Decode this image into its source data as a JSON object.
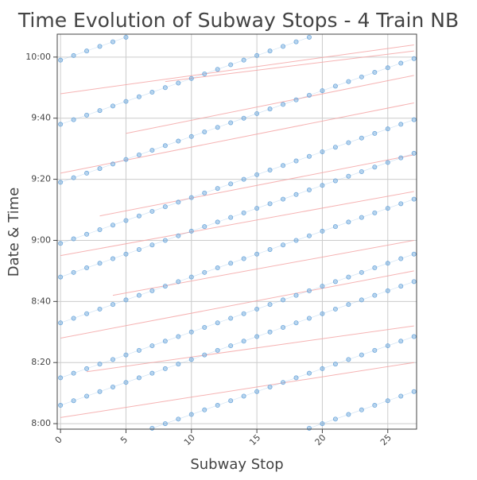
{
  "chart_data": {
    "type": "scatter",
    "title": "Time Evolution of Subway Stops - 4 Train NB",
    "x_label": "Subway Stop",
    "y_label": "Date & Time",
    "xlim": [
      -0.25,
      27.2
    ],
    "ylim": [
      478.2,
      607.5
    ],
    "xticks": [
      0,
      5,
      10,
      15,
      20,
      25
    ],
    "yticks": [
      {
        "value": 480,
        "label": "8:00"
      },
      {
        "value": 500,
        "label": "8:20"
      },
      {
        "value": 520,
        "label": "8:40"
      },
      {
        "value": 540,
        "label": "9:00"
      },
      {
        "value": 560,
        "label": "9:20"
      },
      {
        "value": 580,
        "label": "9:40"
      },
      {
        "value": 600,
        "label": "10:00"
      }
    ],
    "grid": true,
    "x": [
      0,
      1,
      2,
      3,
      4,
      5,
      6,
      7,
      8,
      9,
      10,
      11,
      12,
      13,
      14,
      15,
      16,
      17,
      18,
      19,
      20,
      21,
      22,
      23,
      24,
      25,
      26,
      27
    ],
    "series": [
      {
        "color": "#6fa8dc",
        "values": [
          null,
          null,
          null,
          null,
          null,
          null,
          null,
          null,
          null,
          null,
          null,
          null,
          null,
          null,
          null,
          null,
          null,
          null,
          null,
          478.5,
          480,
          481.5,
          483,
          484.5,
          486,
          487.5,
          489,
          490.5
        ]
      },
      {
        "color": "#6fa8dc",
        "values": [
          null,
          null,
          null,
          null,
          null,
          null,
          null,
          478.5,
          480,
          481.5,
          483,
          484.5,
          486,
          487.5,
          489,
          490.5,
          492,
          493.5,
          495,
          496.5,
          498,
          499.5,
          501,
          502.5,
          504,
          505.5,
          507,
          508.5
        ]
      },
      {
        "color": "#6fa8dc",
        "values": [
          486,
          487.5,
          489,
          490.5,
          492,
          493.5,
          495,
          496.5,
          498,
          499.5,
          501,
          502.5,
          504,
          505.5,
          507,
          508.5,
          510,
          511.5,
          513,
          514.5,
          516,
          517.5,
          519,
          520.5,
          522,
          523.5,
          525,
          526.5
        ]
      },
      {
        "color": "#6fa8dc",
        "values": [
          495,
          496.5,
          498,
          499.5,
          501,
          502.5,
          504,
          505.5,
          507,
          508.5,
          510,
          511.5,
          513,
          514.5,
          516,
          517.5,
          519,
          520.5,
          522,
          523.5,
          525,
          526.5,
          528,
          529.5,
          531,
          532.5,
          534,
          535.5
        ]
      },
      {
        "color": "#6fa8dc",
        "values": [
          513,
          514.5,
          516,
          517.5,
          519,
          520.5,
          522,
          523.5,
          525,
          526.5,
          528,
          529.5,
          531,
          532.5,
          534,
          535.5,
          537,
          538.5,
          540,
          541.5,
          543,
          544.5,
          546,
          547.5,
          549,
          550.5,
          552,
          553.5
        ]
      },
      {
        "color": "#6fa8dc",
        "values": [
          528,
          529.5,
          531,
          532.5,
          534,
          535.5,
          537,
          538.5,
          540,
          541.5,
          543,
          544.5,
          546,
          547.5,
          549,
          550.5,
          552,
          553.5,
          555,
          556.5,
          558,
          559.5,
          561,
          562.5,
          564,
          565.5,
          567,
          568.5
        ]
      },
      {
        "color": "#6fa8dc",
        "values": [
          539,
          540.5,
          542,
          543.5,
          545,
          546.5,
          548,
          549.5,
          551,
          552.5,
          554,
          555.5,
          557,
          558.5,
          560,
          561.5,
          563,
          564.5,
          566,
          567.5,
          569,
          570.5,
          572,
          573.5,
          575,
          576.5,
          578,
          579.5
        ]
      },
      {
        "color": "#6fa8dc",
        "values": [
          559,
          560.5,
          562,
          563.5,
          565,
          566.5,
          568,
          569.5,
          571,
          572.5,
          574,
          575.5,
          577,
          578.5,
          580,
          581.5,
          583,
          584.5,
          586,
          587.5,
          589,
          590.5,
          592,
          593.5,
          595,
          596.5,
          598,
          599.5
        ]
      },
      {
        "color": "#6fa8dc",
        "values": [
          578,
          579.5,
          581,
          582.5,
          584,
          585.5,
          587,
          588.5,
          590,
          591.5,
          593,
          594.5,
          596,
          597.5,
          599,
          600.5,
          602,
          603.5,
          605,
          606.5,
          null,
          null,
          null,
          null,
          null,
          null,
          null,
          null
        ]
      },
      {
        "color": "#6fa8dc",
        "values": [
          599,
          600.5,
          602,
          603.5,
          605,
          606.5,
          null,
          null,
          null,
          null,
          null,
          null,
          null,
          null,
          null,
          null,
          null,
          null,
          null,
          null,
          null,
          null,
          null,
          null,
          null,
          null,
          null,
          null
        ]
      }
    ],
    "lines": [
      {
        "color": "#f4a0a0",
        "x": [
          0,
          27
        ],
        "values": [
          482,
          500
        ]
      },
      {
        "color": "#f4a0a0",
        "x": [
          2,
          27
        ],
        "values": [
          497,
          512
        ]
      },
      {
        "color": "#f4a0a0",
        "x": [
          0,
          27
        ],
        "values": [
          508,
          530
        ]
      },
      {
        "color": "#f4a0a0",
        "x": [
          4,
          27
        ],
        "values": [
          522,
          540
        ]
      },
      {
        "color": "#f4a0a0",
        "x": [
          0,
          27
        ],
        "values": [
          535,
          556
        ]
      },
      {
        "color": "#f4a0a0",
        "x": [
          3,
          27
        ],
        "values": [
          548,
          568
        ]
      },
      {
        "color": "#f4a0a0",
        "x": [
          0,
          27
        ],
        "values": [
          562,
          585
        ]
      },
      {
        "color": "#f4a0a0",
        "x": [
          5,
          27
        ],
        "values": [
          575,
          594
        ]
      },
      {
        "color": "#f4a0a0",
        "x": [
          0,
          27
        ],
        "values": [
          588,
          604
        ]
      },
      {
        "color": "#f4a0a0",
        "x": [
          8,
          27
        ],
        "values": [
          592,
          602
        ]
      }
    ]
  }
}
